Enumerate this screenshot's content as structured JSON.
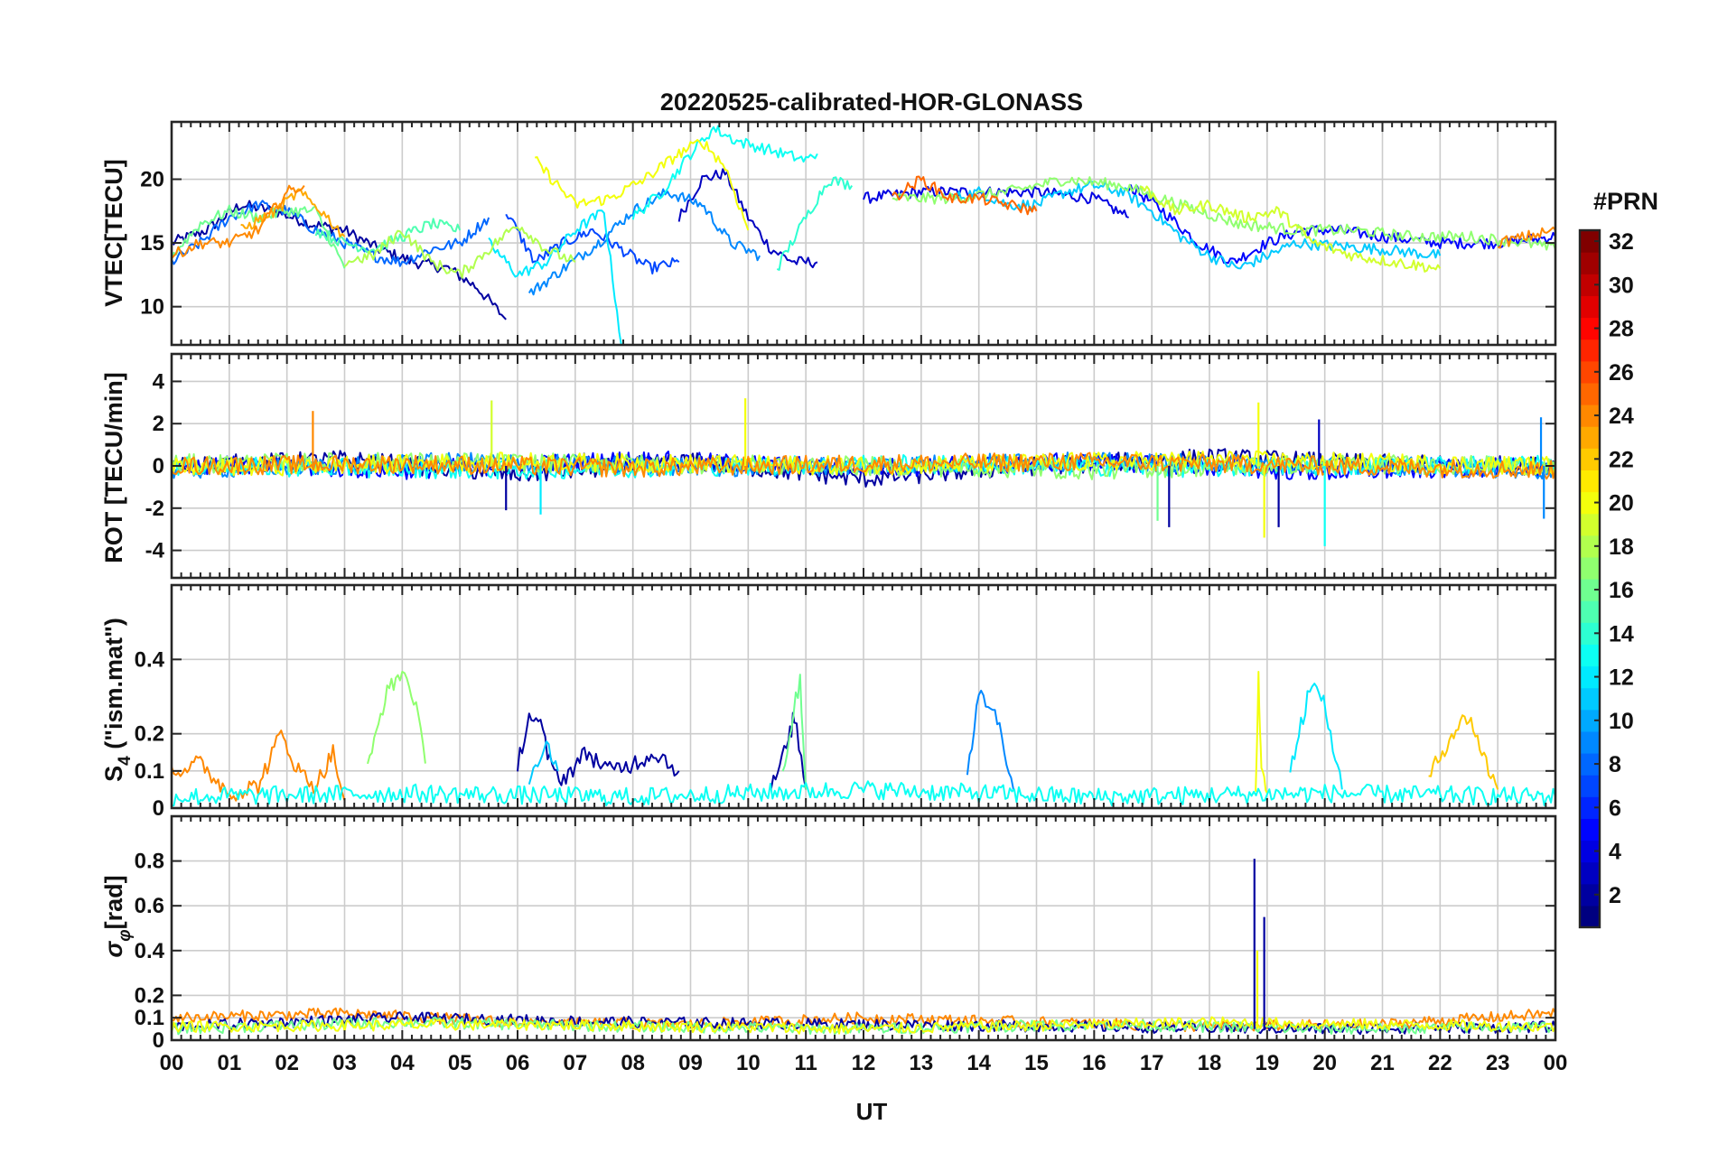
{
  "chart_data": [
    {
      "type": "line",
      "panel": "vtec",
      "title": "20220525-calibrated-HOR-GLONASS",
      "ylabel": "VTEC[TECU]",
      "ylim": [
        7,
        24.5
      ],
      "yticks": [
        10,
        15,
        20
      ],
      "ytick_labels": [
        "10",
        "15",
        "20"
      ],
      "xlim": [
        0,
        24
      ],
      "grid": true,
      "series": [
        {
          "prn": 2,
          "x": [
            0,
            0.6,
            1.2,
            1.8,
            2.4,
            3.0,
            3.6,
            4.2,
            4.8,
            5.3,
            5.8
          ],
          "y": [
            15,
            16,
            18,
            17.5,
            16.5,
            16,
            14.5,
            13.5,
            13,
            11.5,
            9
          ]
        },
        {
          "prn": 3,
          "x": [
            8.8,
            9.2,
            9.6,
            10.0,
            10.4,
            10.8,
            11.2
          ],
          "y": [
            17,
            20,
            20.5,
            17,
            14.5,
            13.5,
            13.5
          ]
        },
        {
          "prn": 4,
          "x": [
            12,
            13,
            14,
            15,
            16,
            16.6
          ],
          "y": [
            18.5,
            19,
            19,
            19,
            18.5,
            17
          ]
        },
        {
          "prn": 5,
          "x": [
            16.6,
            17.2,
            17.8,
            18.4,
            19.0,
            19.6,
            20.2,
            21,
            22,
            23,
            24
          ],
          "y": [
            19.5,
            17.5,
            15,
            13.5,
            15,
            16,
            16,
            15.5,
            15,
            15,
            15.5
          ]
        },
        {
          "prn": 7,
          "x": [
            5.8,
            6.3,
            6.8,
            7.3,
            7.8,
            8.3,
            8.8
          ],
          "y": [
            17.5,
            13.5,
            15,
            16,
            14.5,
            13,
            13.5
          ]
        },
        {
          "prn": 8,
          "x": [
            0,
            0.5,
            1.0,
            1.5,
            2.0,
            2.5,
            3.0,
            3.5,
            4.0,
            4.5,
            5.0,
            5.5
          ],
          "y": [
            13.5,
            15,
            17,
            18,
            17.5,
            16,
            15,
            14,
            13.5,
            14.5,
            15,
            17
          ]
        },
        {
          "prn": 9,
          "x": [
            6.2,
            6.8,
            7.4,
            8.0,
            8.6,
            9.2,
            9.7,
            10.2
          ],
          "y": [
            11,
            13,
            15,
            17.5,
            19,
            18,
            15,
            14
          ]
        },
        {
          "prn": 11,
          "x": [
            13.5,
            14.0,
            14.5,
            15.0,
            15.5,
            16.0,
            16.5,
            17.0,
            17.5,
            18.0,
            18.5,
            19.5,
            21.0,
            22.0
          ],
          "y": [
            18.5,
            19,
            18,
            18,
            19,
            19.5,
            19,
            17.5,
            15.5,
            14,
            13,
            15,
            14.5,
            14
          ]
        },
        {
          "prn": 12,
          "x": [
            5.5,
            6.0,
            6.5,
            7.0,
            7.5,
            7.8
          ],
          "y": [
            15,
            12.5,
            13.5,
            16,
            17.5,
            7
          ]
        },
        {
          "prn": 13,
          "x": [
            8.0,
            8.5,
            9.0,
            9.4,
            9.8,
            10.2,
            10.6,
            11.0,
            11.2
          ],
          "y": [
            17,
            19,
            22,
            24,
            23,
            22.5,
            22,
            21.5,
            22
          ]
        },
        {
          "prn": 14,
          "x": [
            10.5,
            11.0,
            11.4,
            11.8
          ],
          "y": [
            13,
            17,
            20,
            19.5
          ]
        },
        {
          "prn": 15,
          "x": [
            2.5,
            3.0,
            3.5,
            4.0,
            4.5,
            5.0
          ],
          "y": [
            16,
            15,
            14.5,
            15.5,
            16.5,
            16
          ]
        },
        {
          "prn": 16,
          "x": [
            0,
            0.5,
            1.0,
            1.5,
            2.0,
            2.5,
            3.0
          ],
          "y": [
            14,
            16.5,
            17.5,
            17,
            17.5,
            17.5,
            13
          ]
        },
        {
          "prn": 17,
          "x": [
            12.5,
            13.5,
            14.5,
            15.5,
            16.5,
            17.5,
            18.5,
            19.5,
            20.5,
            21.5,
            22.5,
            23.5,
            24
          ],
          "y": [
            18.5,
            18.5,
            19,
            20,
            19.5,
            18,
            16.5,
            16,
            16,
            15.5,
            15.5,
            15,
            14.5
          ]
        },
        {
          "prn": 18,
          "x": [
            3.0,
            3.5,
            4.0,
            4.5,
            5.0,
            5.5,
            6.0,
            6.5,
            7.0
          ],
          "y": [
            13.5,
            14,
            16,
            13.5,
            12.5,
            14.5,
            16.5,
            14.5,
            13.5
          ]
        },
        {
          "prn": 20,
          "x": [
            6.3,
            7.0,
            7.6,
            8.2,
            8.8,
            9.2,
            9.6,
            10.0
          ],
          "y": [
            21.5,
            18,
            18.5,
            20,
            22,
            23,
            21,
            16
          ]
        },
        {
          "prn": 19,
          "x": [
            16.8,
            17.4,
            18.0,
            18.6,
            19.2,
            19.8,
            20.5,
            21.2,
            22.0
          ],
          "y": [
            19.5,
            17.5,
            18,
            17,
            17.5,
            15,
            14,
            13.5,
            13
          ]
        },
        {
          "prn": 23,
          "x": [
            1.2,
            1.8,
            2.2,
            2.6,
            3.0
          ],
          "y": [
            16,
            17.5,
            19,
            17.5,
            15.5
          ]
        },
        {
          "prn": 24,
          "x": [
            0,
            0.5,
            1.0,
            1.5,
            2.0,
            2.3
          ],
          "y": [
            14,
            15,
            15,
            16,
            19,
            19.5
          ]
        },
        {
          "prn": 25,
          "x": [
            12.5,
            13.0,
            13.5,
            14.0,
            14.5,
            15.0
          ],
          "y": [
            18.5,
            20,
            18.5,
            18.5,
            18,
            17.5
          ]
        },
        {
          "prn": 24,
          "x": [
            23.0,
            23.5,
            24
          ],
          "y": [
            15,
            15.5,
            16
          ]
        }
      ]
    },
    {
      "type": "line",
      "panel": "rot",
      "ylabel": "ROT [TECU/min]",
      "ylim": [
        -5.3,
        5.3
      ],
      "yticks": [
        -4,
        -2,
        0,
        2,
        4
      ],
      "ytick_labels": [
        "-4",
        "-2",
        "0",
        "2",
        "4"
      ],
      "xlim": [
        0,
        24
      ],
      "grid": true,
      "series": [
        {
          "prn": 2,
          "x": [
            0,
            3,
            6,
            9,
            12,
            15,
            18,
            21,
            24
          ],
          "y": [
            0,
            0.3,
            -0.4,
            0.2,
            -0.6,
            0,
            0.4,
            0.1,
            0
          ]
        },
        {
          "prn": 5,
          "x": [
            0,
            4,
            8,
            12,
            16,
            20,
            24
          ],
          "y": [
            0.1,
            -0.2,
            0.3,
            -0.1,
            0.2,
            -0.3,
            0
          ]
        },
        {
          "prn": 9,
          "x": [
            0,
            5,
            10,
            15,
            20,
            24
          ],
          "y": [
            -0.2,
            0.2,
            -0.1,
            0.2,
            0.1,
            -0.2
          ]
        },
        {
          "prn": 13,
          "x": [
            0,
            6,
            12,
            18,
            24
          ],
          "y": [
            0,
            -0.2,
            0.1,
            -0.1,
            0.1
          ]
        },
        {
          "prn": 17,
          "x": [
            0,
            4,
            8,
            12,
            16,
            20,
            24
          ],
          "y": [
            0.1,
            0.2,
            0.1,
            0,
            -0.2,
            0.1,
            0
          ]
        },
        {
          "prn": 20,
          "x": [
            0,
            6,
            12,
            18,
            24
          ],
          "y": [
            -0.1,
            0.2,
            0,
            0.3,
            0
          ]
        },
        {
          "prn": 24,
          "x": [
            0,
            4,
            8,
            12,
            16,
            20,
            24
          ],
          "y": [
            0,
            0.1,
            -0.1,
            0.1,
            0.2,
            0,
            -0.2
          ]
        }
      ],
      "spikes": [
        {
          "prn": 24,
          "x": 2.45,
          "y": 2.6
        },
        {
          "prn": 19,
          "x": 5.55,
          "y": 3.1
        },
        {
          "prn": 2,
          "x": 5.8,
          "y": -2.1
        },
        {
          "prn": 12,
          "x": 6.4,
          "y": -2.3
        },
        {
          "prn": 20,
          "x": 9.95,
          "y": 3.2
        },
        {
          "prn": 16,
          "x": 17.1,
          "y": -2.6
        },
        {
          "prn": 2,
          "x": 17.3,
          "y": -2.9
        },
        {
          "prn": 20,
          "x": 18.85,
          "y": 3.0
        },
        {
          "prn": 20,
          "x": 18.95,
          "y": -3.4
        },
        {
          "prn": 2,
          "x": 19.2,
          "y": -2.9
        },
        {
          "prn": 3,
          "x": 19.9,
          "y": 2.2
        },
        {
          "prn": 13,
          "x": 20.0,
          "y": -3.8
        },
        {
          "prn": 9,
          "x": 23.75,
          "y": 2.3
        },
        {
          "prn": 9,
          "x": 23.8,
          "y": -2.5
        }
      ]
    },
    {
      "type": "line",
      "panel": "s4",
      "ylabel": "S4 (\"ism.mat\")",
      "ylim": [
        0,
        0.6
      ],
      "yticks": [
        0,
        0.1,
        0.2,
        0.4
      ],
      "ytick_labels": [
        "0",
        "0.1",
        "0.2",
        "0.4"
      ],
      "xlim": [
        0,
        24
      ],
      "grid": true,
      "series": [
        {
          "prn": 24,
          "x": [
            0,
            0.5,
            1.0,
            1.5,
            1.9,
            2.2,
            2.5,
            2.8,
            3.0
          ],
          "y": [
            0.1,
            0.12,
            0.04,
            0.06,
            0.2,
            0.1,
            0.06,
            0.15,
            0.02
          ]
        },
        {
          "prn": 17,
          "x": [
            3.4,
            3.7,
            4.0,
            4.2,
            4.4
          ],
          "y": [
            0.1,
            0.3,
            0.37,
            0.3,
            0.12
          ]
        },
        {
          "prn": 2,
          "x": [
            6.0,
            6.2,
            6.4,
            6.6,
            6.8,
            7.2,
            7.6,
            8.0,
            8.4,
            8.8
          ],
          "y": [
            0.12,
            0.25,
            0.22,
            0.1,
            0.08,
            0.15,
            0.1,
            0.12,
            0.15,
            0.1
          ]
        },
        {
          "prn": 2,
          "x": [
            10.4,
            10.7,
            10.8,
            11.0
          ],
          "y": [
            0.05,
            0.18,
            0.25,
            0.05
          ]
        },
        {
          "prn": 11,
          "x": [
            6.2,
            6.5,
            6.7
          ],
          "y": [
            0.08,
            0.18,
            0.1
          ]
        },
        {
          "prn": 16,
          "x": [
            10.6,
            10.9,
            11.0
          ],
          "y": [
            0.1,
            0.35,
            0.05
          ]
        },
        {
          "prn": 9,
          "x": [
            13.8,
            14.0,
            14.2,
            14.4,
            14.6
          ],
          "y": [
            0.1,
            0.3,
            0.28,
            0.2,
            0.05
          ]
        },
        {
          "prn": 12,
          "x": [
            19.4,
            19.7,
            19.9,
            20.1,
            20.3
          ],
          "y": [
            0.1,
            0.3,
            0.33,
            0.2,
            0.05
          ]
        },
        {
          "prn": 22,
          "x": [
            21.8,
            22.2,
            22.5,
            22.8,
            23.0
          ],
          "y": [
            0.08,
            0.2,
            0.25,
            0.12,
            0.05
          ]
        },
        {
          "prn": 20,
          "x": [
            18.8,
            18.85,
            18.9,
            19.0
          ],
          "y": [
            0.05,
            0.35,
            0.1,
            0.04
          ]
        },
        {
          "prn": 13,
          "x": [
            0,
            4,
            8,
            12,
            16,
            20,
            24
          ],
          "y": [
            0.03,
            0.04,
            0.03,
            0.05,
            0.03,
            0.04,
            0.03
          ]
        }
      ]
    },
    {
      "type": "line",
      "panel": "sigma_phi",
      "ylabel": "σφ [rad]",
      "ylim": [
        0,
        1.0
      ],
      "yticks": [
        0,
        0.1,
        0.2,
        0.4,
        0.6,
        0.8
      ],
      "ytick_labels": [
        "0",
        "0.1",
        "0.2",
        "0.4",
        "0.6",
        "0.8"
      ],
      "xlabel": "UT",
      "xlim": [
        0,
        24
      ],
      "xtick_labels": [
        "00",
        "01",
        "02",
        "03",
        "04",
        "05",
        "06",
        "07",
        "08",
        "09",
        "10",
        "11",
        "12",
        "13",
        "14",
        "15",
        "16",
        "17",
        "18",
        "19",
        "20",
        "21",
        "22",
        "23",
        "00"
      ],
      "grid": true,
      "series": [
        {
          "prn": 24,
          "x": [
            0,
            3,
            6,
            9,
            12,
            15,
            18,
            21,
            24
          ],
          "y": [
            0.1,
            0.12,
            0.08,
            0.07,
            0.1,
            0.08,
            0.06,
            0.07,
            0.12
          ]
        },
        {
          "prn": 2,
          "x": [
            0,
            4,
            8,
            12,
            16,
            20,
            24
          ],
          "y": [
            0.06,
            0.1,
            0.08,
            0.07,
            0.06,
            0.05,
            0.06
          ]
        },
        {
          "prn": 16,
          "x": [
            0,
            4,
            8,
            12,
            16,
            20,
            24
          ],
          "y": [
            0.05,
            0.08,
            0.06,
            0.05,
            0.07,
            0.05,
            0.06
          ]
        },
        {
          "prn": 20,
          "x": [
            0,
            6,
            12,
            18,
            24
          ],
          "y": [
            0.06,
            0.07,
            0.05,
            0.08,
            0.06
          ]
        }
      ],
      "spikes": [
        {
          "prn": 2,
          "x": 18.78,
          "y": 0.81
        },
        {
          "prn": 2,
          "x": 18.95,
          "y": 0.55
        },
        {
          "prn": 20,
          "x": 18.83,
          "y": 0.4
        }
      ]
    },
    {
      "type": "colorbar",
      "label": "#PRN",
      "range": [
        1,
        32
      ],
      "ticks": [
        2,
        4,
        6,
        8,
        10,
        12,
        14,
        16,
        18,
        20,
        22,
        24,
        26,
        28,
        30,
        32
      ],
      "tick_labels": [
        "2",
        "4",
        "6",
        "8",
        "10",
        "12",
        "14",
        "16",
        "18",
        "20",
        "22",
        "24",
        "26",
        "28",
        "30",
        "32"
      ],
      "colormap": "jet"
    }
  ],
  "text": {
    "title": "20220525-calibrated-HOR-GLONASS",
    "xlabel": "UT",
    "colorbar_label": "#PRN",
    "ylabel_vtec": "VTEC[TECU]",
    "ylabel_rot": "ROT [TECU/min]",
    "ylabel_s4_main": "S",
    "ylabel_s4_sub": "4",
    "ylabel_s4_rest": " (\"ism.mat\")",
    "ylabel_sigma_main": "σ",
    "ylabel_sigma_sub": "φ",
    "ylabel_sigma_rest": "[rad]"
  }
}
